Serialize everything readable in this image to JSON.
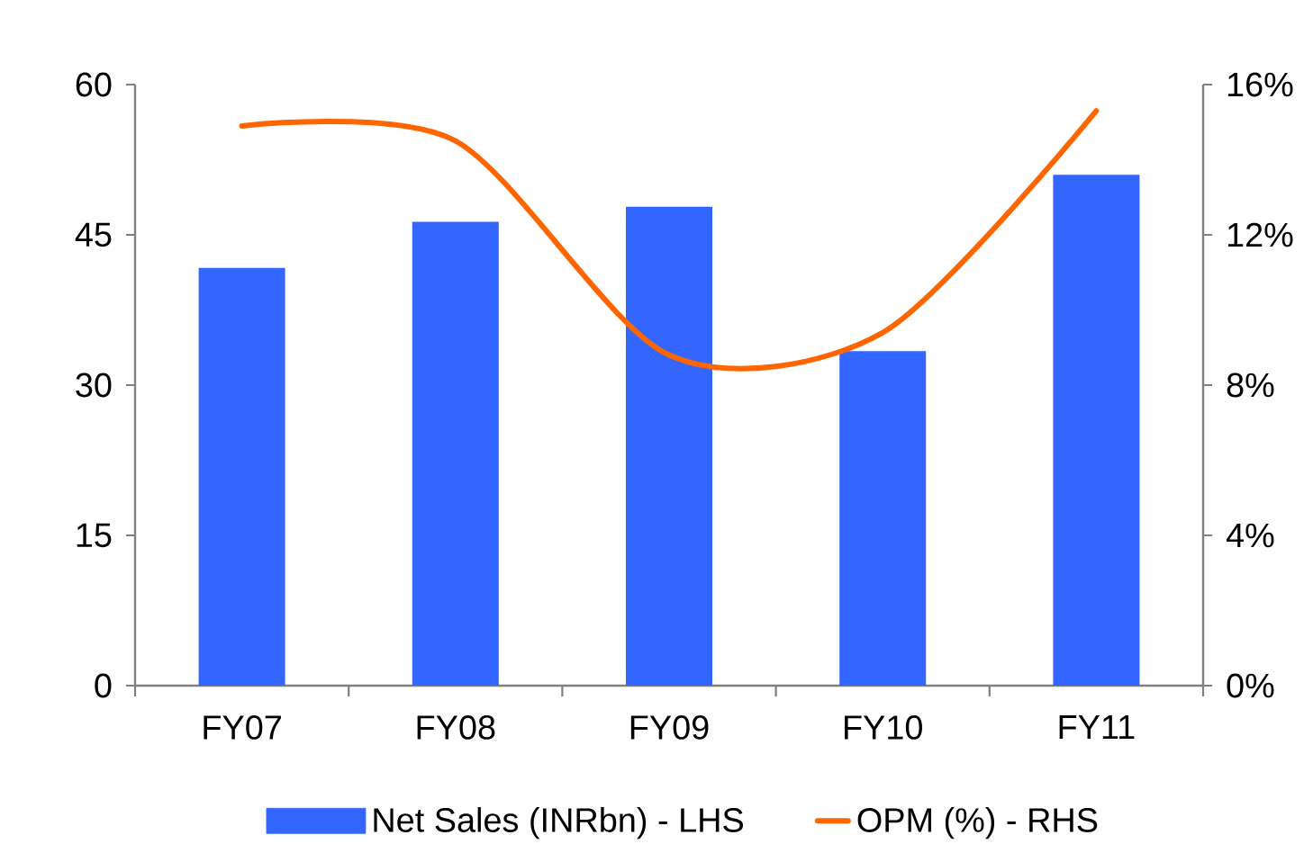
{
  "chart_data": {
    "type": "bar",
    "categories": [
      "FY07",
      "FY08",
      "FY09",
      "FY10",
      "FY11"
    ],
    "series": [
      {
        "name": "Net Sales (INRbn) - LHS",
        "color": "#3366ff",
        "values": [
          41.7,
          46.3,
          47.8,
          33.4,
          51.0
        ]
      },
      {
        "name": "OPM (%) - RHS",
        "type": "line",
        "axis": "y2",
        "color": "#ff6600",
        "values": [
          14.9,
          14.5,
          8.8,
          9.4,
          15.3
        ]
      }
    ],
    "ylim": [
      0,
      60
    ],
    "yticks": [
      0,
      15,
      30,
      45,
      60
    ],
    "y2lim": [
      0,
      16
    ],
    "y2ticks": [
      {
        "value": 0,
        "label": "0%"
      },
      {
        "value": 4,
        "label": "4%"
      },
      {
        "value": 8,
        "label": "8%"
      },
      {
        "value": 12,
        "label": "12%"
      },
      {
        "value": 16,
        "label": "16%"
      }
    ],
    "legend": "bottom",
    "marker": "none"
  }
}
